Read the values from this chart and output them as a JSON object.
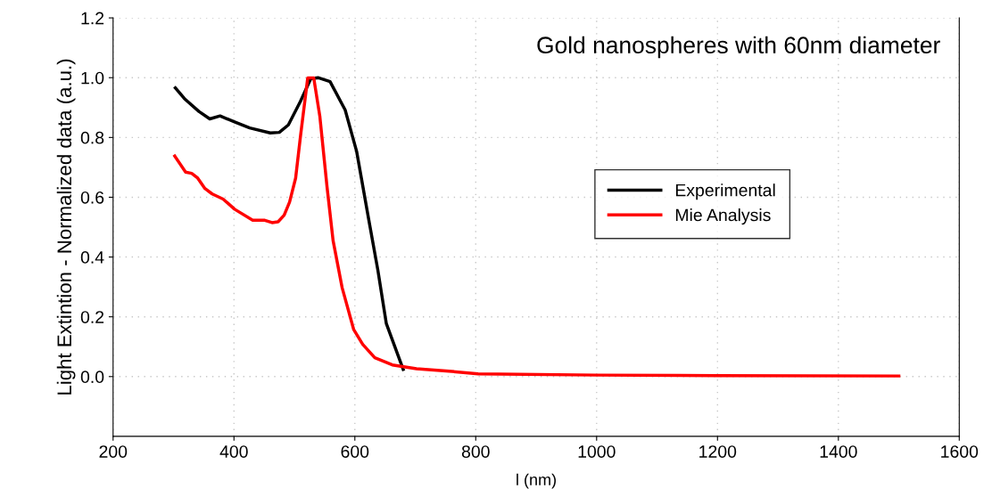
{
  "chart_data": {
    "type": "line",
    "title": "Gold nanospheres with 60nm diameter",
    "xlabel": "l (nm)",
    "ylabel": "Light Extintion - Normalized data (a.u.)",
    "xlim": [
      200,
      1600
    ],
    "xticks": [
      200,
      400,
      600,
      800,
      1000,
      1200,
      1400,
      1600
    ],
    "ylim": [
      -0.2,
      1.2
    ],
    "yticks": [
      {
        "value": 0,
        "label": "0.0"
      },
      0.2,
      0.4,
      0.6,
      0.8,
      {
        "value": 1,
        "label": "1.0"
      },
      1.2
    ],
    "grid": true,
    "legend": "center right",
    "line_style": "solid",
    "marker": "none",
    "series": [
      {
        "name": "Experimental",
        "color": "#000000",
        "x": [
          303,
          318,
          342,
          360,
          377,
          401,
          426,
          460,
          475,
          490,
          510,
          527,
          539,
          559,
          584,
          603,
          623,
          638,
          652,
          680
        ],
        "values": [
          0.966,
          0.93,
          0.887,
          0.862,
          0.872,
          0.852,
          0.832,
          0.815,
          0.817,
          0.842,
          0.921,
          0.996,
          1.0,
          0.987,
          0.892,
          0.753,
          0.525,
          0.357,
          0.178,
          0.024
        ]
      },
      {
        "name": "Mie Analysis",
        "color": "#ff0000",
        "x": [
          302,
          320,
          330,
          340,
          352,
          364,
          382,
          401,
          431,
          451,
          463,
          473,
          483,
          492,
          502,
          510,
          522,
          532,
          542,
          554,
          564,
          579,
          598,
          613,
          633,
          662,
          702,
          751,
          804,
          1000,
          1200,
          1500
        ],
        "values": [
          0.738,
          0.684,
          0.68,
          0.664,
          0.629,
          0.611,
          0.594,
          0.56,
          0.523,
          0.523,
          0.515,
          0.518,
          0.54,
          0.584,
          0.664,
          0.803,
          0.999,
          0.999,
          0.872,
          0.634,
          0.455,
          0.297,
          0.158,
          0.108,
          0.063,
          0.039,
          0.026,
          0.019,
          0.009,
          0.005,
          0.003,
          0.002
        ]
      }
    ]
  }
}
